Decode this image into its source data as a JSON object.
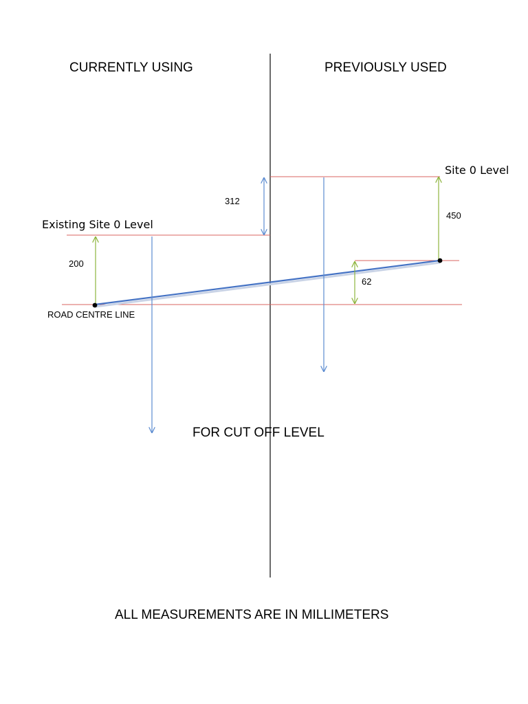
{
  "headings": {
    "left": "CURRENTLY USING",
    "right": "PREVIOUSLY USED",
    "cutoff": "FOR CUT OFF LEVEL",
    "footer": "ALL MEASUREMENTS ARE IN MILLIMETERS"
  },
  "levels": {
    "existing_site": "Existing Site 0 Level",
    "site": "Site 0 Level",
    "road": "ROAD CENTRE LINE"
  },
  "dimensions": {
    "left_rise": "200",
    "site_difference": "312",
    "right_rise": "450",
    "road_difference": "62"
  },
  "colors": {
    "level_line": "#d9635f",
    "centre_divider": "#1a1a1a",
    "blue_arrow": "#5b8bd0",
    "green_arrow": "#8db43c",
    "road_slope": "#4472c4",
    "point": "#000000"
  }
}
